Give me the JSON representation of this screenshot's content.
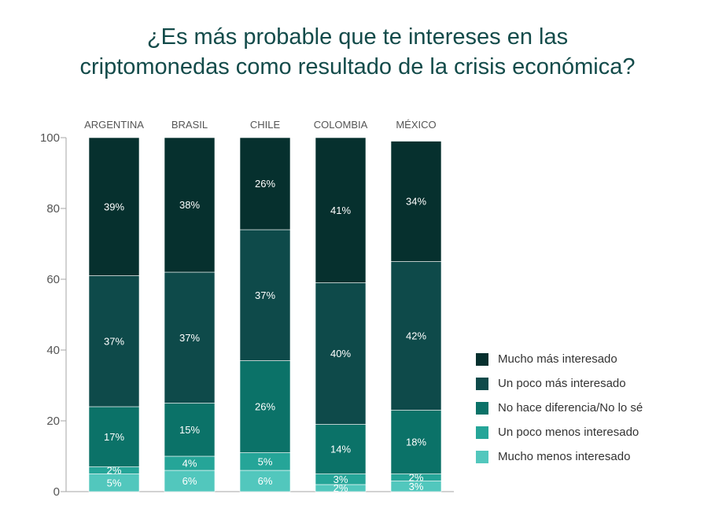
{
  "title": {
    "line1": "¿Es más probable que te intereses en las",
    "line2": "criptomonedas como resultado de la crisis económica?"
  },
  "colors": {
    "title": "#134b4a",
    "axis": "#a6a6a6",
    "text": "#555555",
    "series": [
      "#52c7bd",
      "#25a598",
      "#0b7268",
      "#0e4a4a",
      "#06302e"
    ]
  },
  "chart_data": {
    "type": "bar",
    "stacked": true,
    "categories": [
      "ARGENTINA",
      "BRASIL",
      "CHILE",
      "COLOMBIA",
      "MÉXICO"
    ],
    "series": [
      {
        "name": "Mucho menos interesado",
        "values": [
          5,
          6,
          6,
          2,
          3
        ]
      },
      {
        "name": "Un poco menos interesado",
        "values": [
          2,
          4,
          5,
          3,
          2
        ]
      },
      {
        "name": "No hace diferencia/No lo sé",
        "values": [
          17,
          15,
          26,
          14,
          18
        ]
      },
      {
        "name": "Un poco más interesado",
        "values": [
          37,
          37,
          37,
          40,
          42
        ]
      },
      {
        "name": "Mucho más interesado",
        "values": [
          39,
          38,
          26,
          41,
          34
        ]
      }
    ],
    "data_labels": [
      [
        "5%",
        "6%",
        "6%",
        "2%",
        "3%"
      ],
      [
        "2%",
        "4%",
        "5%",
        "3%",
        "2%"
      ],
      [
        "17%",
        "15%",
        "26%",
        "14%",
        "18%"
      ],
      [
        "37%",
        "37%",
        "37%",
        "40%",
        "42%"
      ],
      [
        "39%",
        "38%",
        "26%",
        "41%",
        "34%"
      ]
    ],
    "ylim": [
      0,
      100
    ],
    "yticks": [
      0,
      20,
      40,
      60,
      80,
      100
    ],
    "xlabel": "",
    "ylabel": "",
    "legend_position": "right",
    "legend_order": [
      "Mucho más interesado",
      "Un poco más interesado",
      "No hace diferencia/No lo sé",
      "Un poco menos interesado",
      "Mucho menos interesado"
    ],
    "grid": false
  }
}
